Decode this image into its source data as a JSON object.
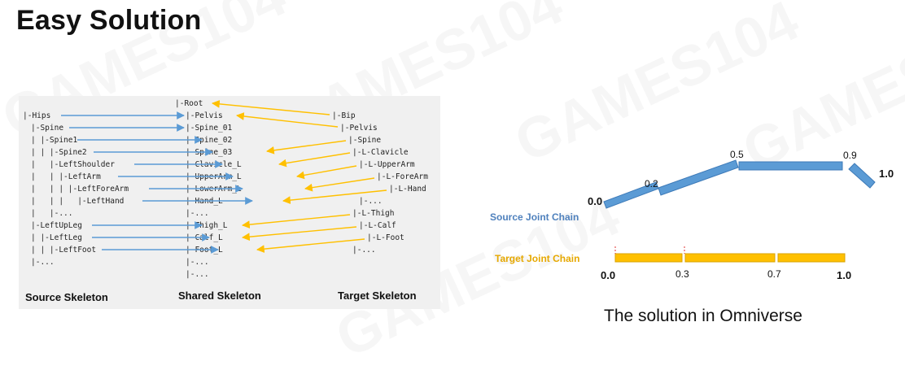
{
  "title": "Easy Solution",
  "watermark": "GAMES104",
  "caption": "The solution in Omniverse",
  "colors": {
    "source": "#5b9bd5",
    "target": "#ffc000",
    "source_label": "#4f81bd",
    "target_label": "#e6a800",
    "panel_bg": "#f0f0f0"
  },
  "skeleton": {
    "source_heading": "Source Skeleton",
    "shared_heading": "Shared Skeleton",
    "target_heading": "Target Skeleton",
    "source": [
      "|-Hips",
      "|-Spine",
      "| |-Spine1",
      "| | |-Spine2",
      "|   |-LeftShoulder",
      "|   | |-LeftArm",
      "|   | | |-LeftForeArm",
      "|   | |   |-LeftHand",
      "|   |-...",
      "|-LeftUpLeg",
      "| |-LeftLeg",
      "| | |-LeftFoot",
      "|-..."
    ],
    "shared": [
      "|-Root",
      "|-Pelvis",
      "|-Spine_01",
      "|-Spine_02",
      "|-Spine_03",
      "|-Clavicle_L",
      "|-UpperArm_L",
      "|-LowerArm_L",
      "|-Hand_L",
      "|-...",
      "|-Thigh_L",
      "|-Calf_L",
      "|-Foot_L",
      "|-...",
      "|-..."
    ],
    "target": [
      "|-Bip",
      "|-Pelvis",
      "|-Spine",
      "|-L-Clavicle",
      "|-L-UpperArm",
      "|-L-ForeArm",
      "|-L-Hand",
      "|-...",
      "|-L-Thigh",
      "|-L-Calf",
      "|-L-Foot",
      "|-..."
    ]
  },
  "chains": {
    "source_label": "Source Joint Chain",
    "target_label": "Target Joint Chain",
    "source_ticks": [
      "0.0",
      "0.2",
      "0.5",
      "0.9",
      "1.0"
    ],
    "target_ticks": [
      "0.0",
      "0.3",
      "0.7",
      "1.0"
    ]
  }
}
